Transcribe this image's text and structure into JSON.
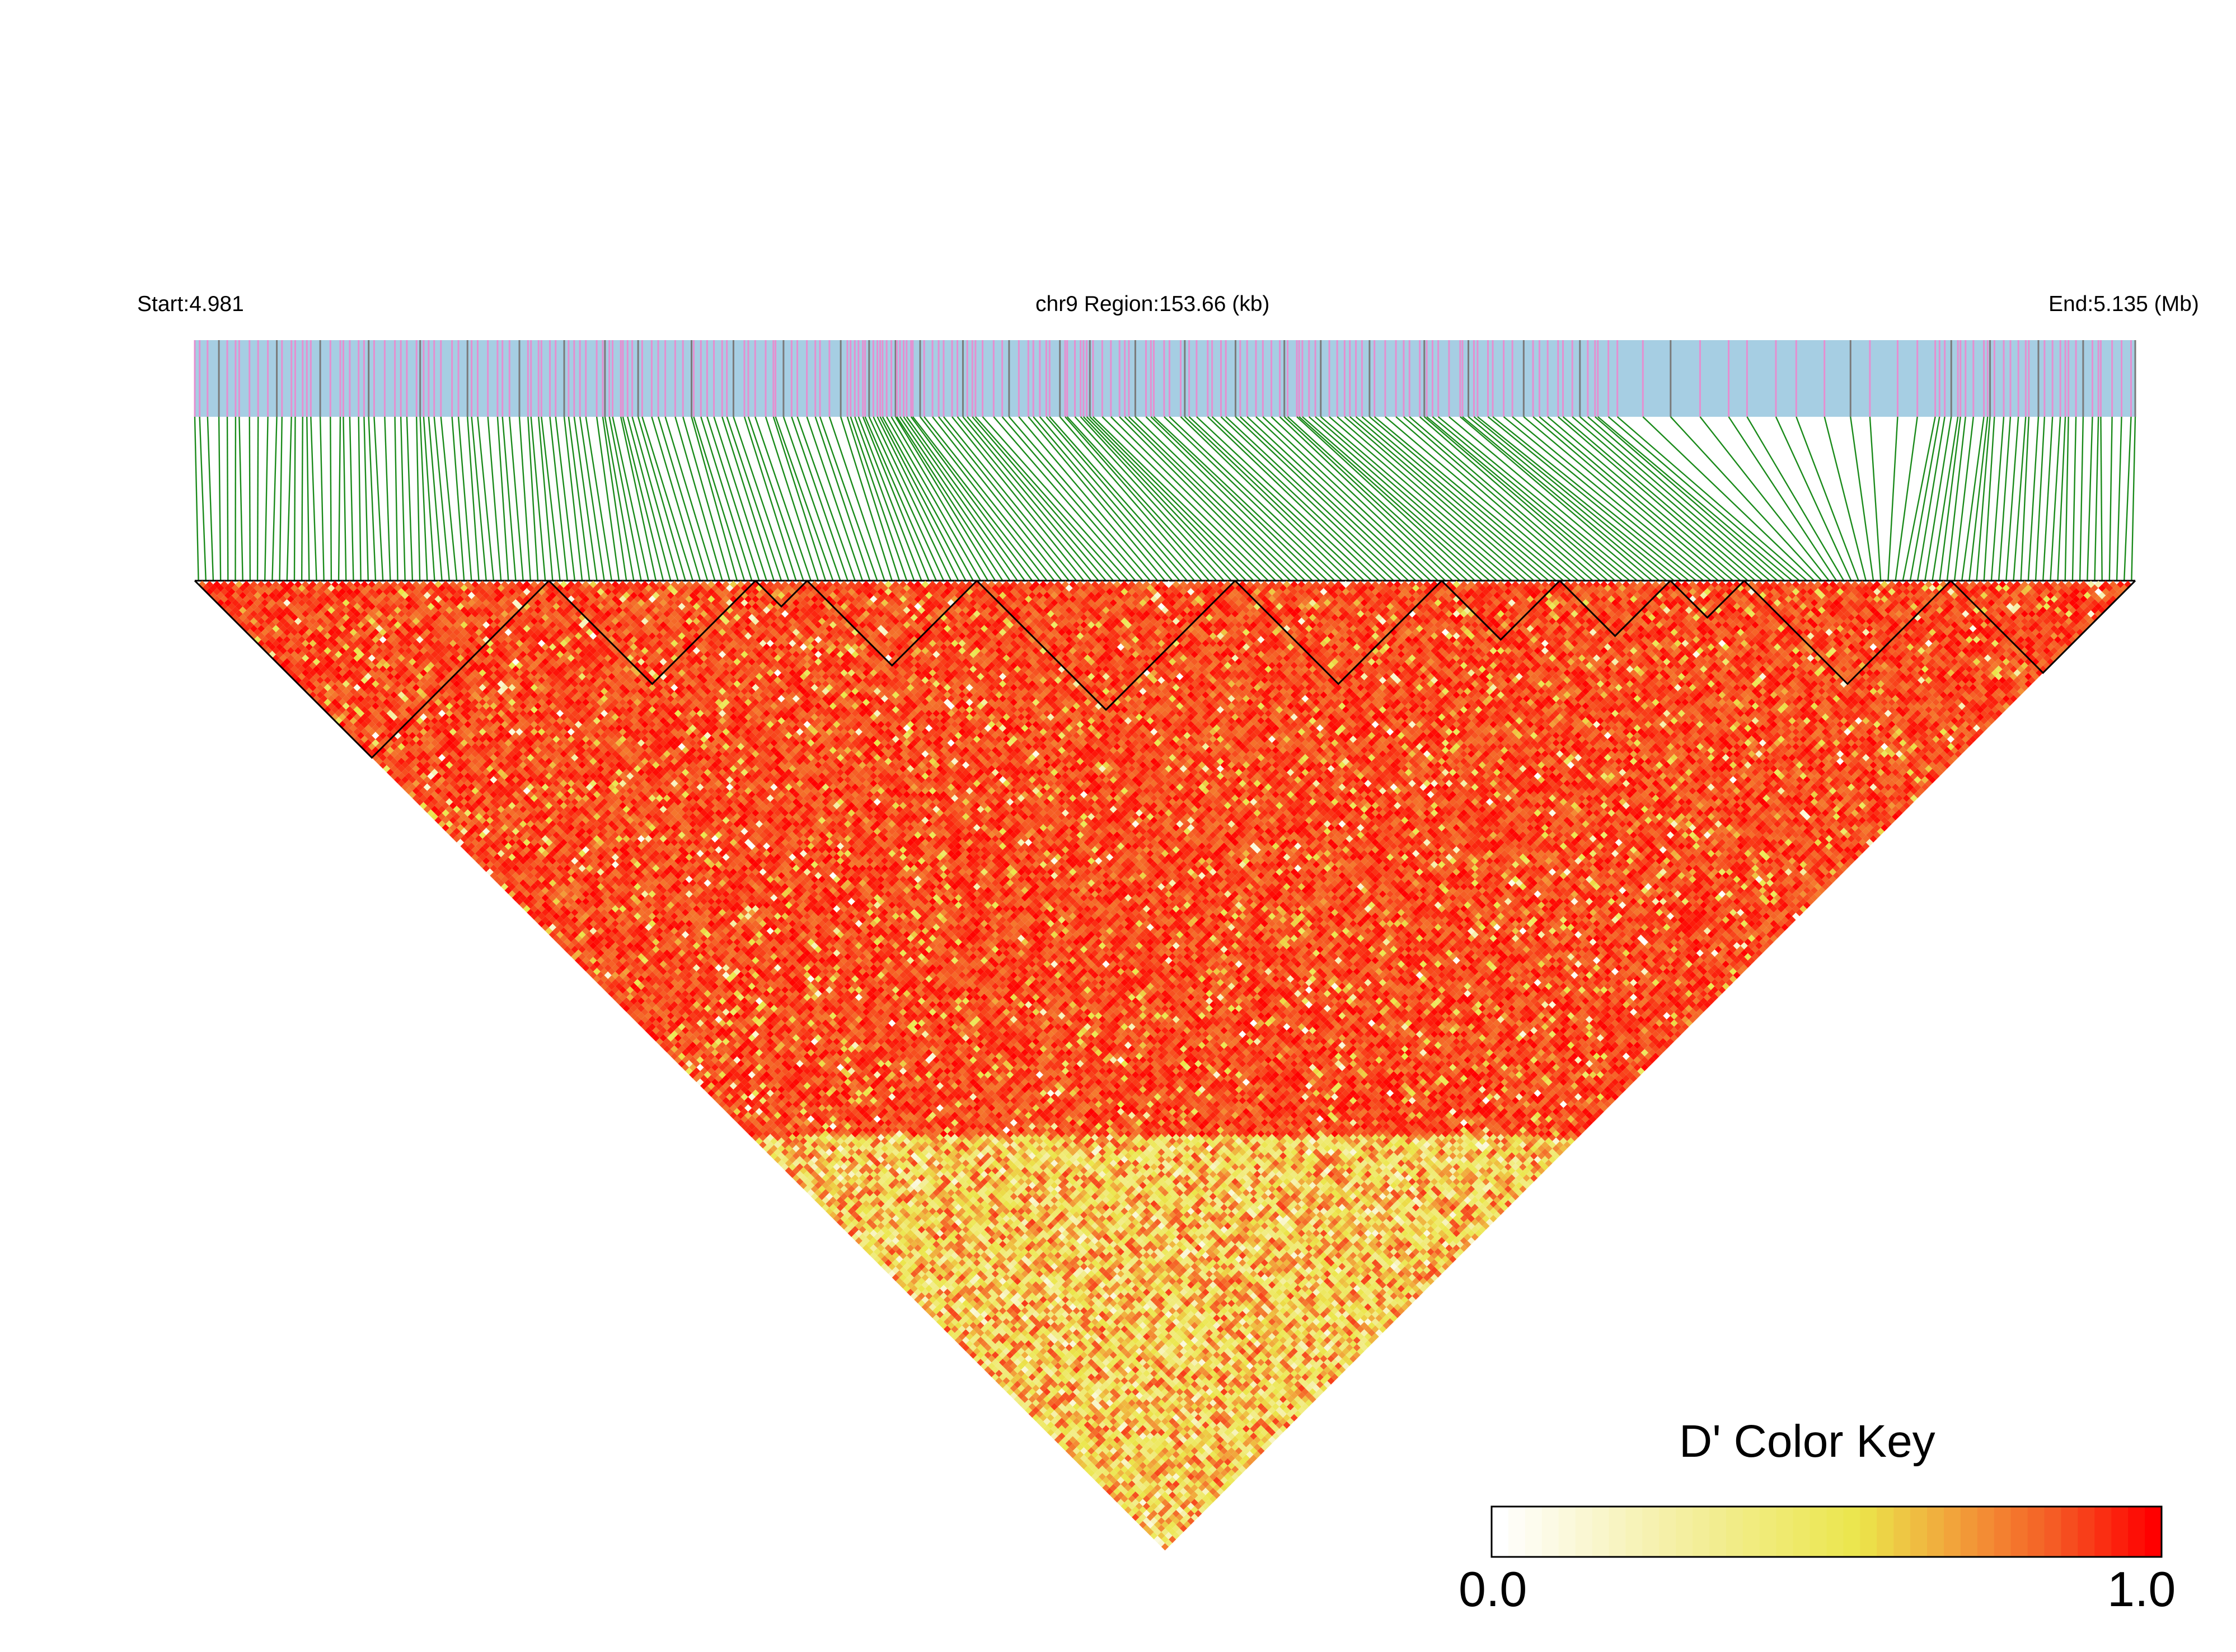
{
  "header": {
    "start": "Start:4.981",
    "region": "chr9 Region:153.66 (kb)",
    "end": "End:5.135 (Mb)"
  },
  "chart_data": {
    "type": "heatmap",
    "subtype": "linkage-disequilibrium triangle",
    "chromosome": "chr9",
    "region_start_mb": 4.981,
    "region_end_mb": 5.135,
    "region_length_kb": 153.66,
    "metric": "D'",
    "value_range": [
      0.0,
      1.0
    ],
    "color_scale": [
      "#ffffff",
      "#f5f07a",
      "#e8e84a",
      "#f2a33a",
      "#f55a24",
      "#ff0000"
    ],
    "snp_track_colors": {
      "background": "#a6cee3",
      "snp": "#e58fd0",
      "connector": "#1a8a1a"
    },
    "haplotype_block_snp_ranges": [
      [
        0,
        48
      ],
      [
        48,
        76
      ],
      [
        76,
        83
      ],
      [
        83,
        106
      ],
      [
        106,
        141
      ],
      [
        141,
        169
      ],
      [
        169,
        185
      ],
      [
        185,
        200
      ],
      [
        200,
        210
      ],
      [
        210,
        238
      ],
      [
        238,
        263
      ]
    ],
    "note_values": "Dominant D' ≈ 0.85–1.0 (red) across the region; lower D' (yellow/white) along the long-range lower-left edge."
  },
  "color_key": {
    "title": "D' Color Key",
    "min_label": "0.0",
    "max_label": "1.0"
  }
}
